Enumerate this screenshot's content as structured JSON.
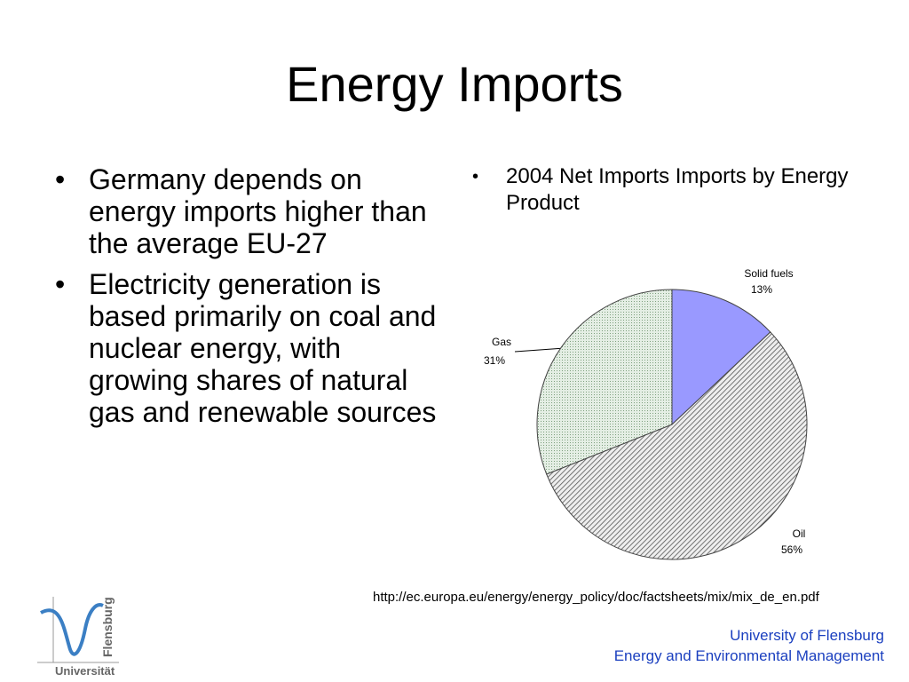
{
  "title": "Energy Imports",
  "left_bullets": [
    "Germany depends on energy imports higher than the average EU-27",
    "Electricity generation is based primarily on coal and nuclear energy, with growing shares of natural gas and renewable sources"
  ],
  "right_bullet": "2004 Net Imports Imports by Energy Product",
  "chart_data": {
    "type": "pie",
    "categories": [
      "Solid fuels",
      "Oil",
      "Gas"
    ],
    "values": [
      13,
      56,
      31
    ],
    "value_labels": [
      "13%",
      "56%",
      "31%"
    ],
    "colors": [
      "#9999ff",
      "#555555",
      "#7fa07f"
    ]
  },
  "source": "http://ec.europa.eu/energy/energy_policy/doc/factsheets/mix/mix_de_en.pdf",
  "footer": [
    "University of Flensburg",
    "Energy and Environmental Management"
  ],
  "logo": [
    "Flensburg",
    "Universität"
  ]
}
